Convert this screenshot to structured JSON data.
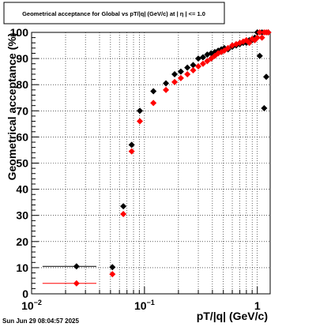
{
  "chart_data": {
    "type": "scatter",
    "title": "Geometrical acceptance for Global vs pT/|q| (GeV/c) at |  η  | <= 1.0",
    "xlabel": "pT/|q| (GeV/c)",
    "ylabel": "Geometrical acceptance (%)",
    "xscale": "log",
    "xlim": [
      0.01,
      1.3
    ],
    "ylim": [
      0,
      100
    ],
    "grid": true,
    "legend": "none",
    "y_ticks": [
      "0",
      "10",
      "20",
      "30",
      "40",
      "50",
      "60",
      "70",
      "80",
      "90",
      "100"
    ],
    "x_ticks": [
      {
        "value": 0.01,
        "base": "10",
        "exp": "−2"
      },
      {
        "value": 0.1,
        "base": "10",
        "exp": "−1"
      },
      {
        "value": 1,
        "base": "1",
        "exp": ""
      }
    ],
    "date_stamp": "Sun Jun 29 08:04:57 2025",
    "colors": {
      "series_a": "#000000",
      "series_b": "#ff0000"
    },
    "series": [
      {
        "color": "#000000",
        "points": [
          [
            0.025,
            10.5,
            0.0125
          ],
          [
            0.052,
            10.2,
            0.0025
          ],
          [
            0.065,
            33.5,
            0.0025
          ],
          [
            0.077,
            57,
            0.0025
          ],
          [
            0.091,
            70,
            0.005
          ],
          [
            0.12,
            77.5,
            0.005
          ],
          [
            0.155,
            80.5,
            0.005
          ],
          [
            0.185,
            84,
            0.005
          ],
          [
            0.21,
            85,
            0.005
          ],
          [
            0.24,
            86.5,
            0.005
          ],
          [
            0.27,
            87.5,
            0.005
          ],
          [
            0.3,
            90,
            0.005
          ],
          [
            0.33,
            90.5,
            0.005
          ],
          [
            0.36,
            91.5,
            0.005
          ],
          [
            0.39,
            92,
            0.005
          ],
          [
            0.42,
            92.5,
            0.005
          ],
          [
            0.45,
            93,
            0.005
          ],
          [
            0.48,
            93.5,
            0.005
          ],
          [
            0.51,
            94,
            0.005
          ],
          [
            0.55,
            93.5,
            0.005
          ],
          [
            0.6,
            94.5,
            0.005
          ],
          [
            0.65,
            95,
            0.005
          ],
          [
            0.7,
            95.5,
            0.005
          ],
          [
            0.75,
            96,
            0.005
          ],
          [
            0.8,
            96,
            0.005
          ],
          [
            0.85,
            97,
            0.005
          ],
          [
            0.9,
            97,
            0.005
          ],
          [
            0.95,
            98,
            0.005
          ],
          [
            1.0,
            100,
            0.005
          ],
          [
            1.05,
            91,
            0.005
          ],
          [
            1.1,
            100,
            0.005
          ],
          [
            1.15,
            71,
            0.005
          ],
          [
            1.2,
            83,
            0.005
          ],
          [
            1.25,
            100,
            0.005
          ]
        ]
      },
      {
        "color": "#ff0000",
        "points": [
          [
            0.025,
            4,
            0.0125
          ],
          [
            0.052,
            7.5,
            0.0025
          ],
          [
            0.065,
            30.5,
            0.0025
          ],
          [
            0.077,
            54.5,
            0.0025
          ],
          [
            0.091,
            66,
            0.005
          ],
          [
            0.12,
            73,
            0.005
          ],
          [
            0.155,
            78,
            0.005
          ],
          [
            0.185,
            81,
            0.005
          ],
          [
            0.21,
            82.5,
            0.005
          ],
          [
            0.24,
            84,
            0.005
          ],
          [
            0.27,
            85.5,
            0.005
          ],
          [
            0.3,
            87,
            0.005
          ],
          [
            0.33,
            88,
            0.005
          ],
          [
            0.36,
            89,
            0.005
          ],
          [
            0.39,
            90,
            0.005
          ],
          [
            0.42,
            91,
            0.005
          ],
          [
            0.45,
            92,
            0.005
          ],
          [
            0.48,
            92.5,
            0.005
          ],
          [
            0.51,
            93,
            0.005
          ],
          [
            0.55,
            94,
            0.005
          ],
          [
            0.6,
            95,
            0.005
          ],
          [
            0.65,
            95.5,
            0.005
          ],
          [
            0.7,
            96,
            0.005
          ],
          [
            0.75,
            96.5,
            0.005
          ],
          [
            0.8,
            97,
            0.005
          ],
          [
            0.85,
            96,
            0.005
          ],
          [
            0.9,
            97.5,
            0.005
          ],
          [
            0.95,
            97,
            0.005
          ],
          [
            1.0,
            98,
            0.005
          ],
          [
            1.05,
            100,
            0.005
          ],
          [
            1.1,
            98,
            0.005
          ],
          [
            1.15,
            100,
            0.005
          ],
          [
            1.2,
            100,
            0.005
          ],
          [
            1.25,
            100,
            0.005
          ]
        ]
      }
    ]
  }
}
